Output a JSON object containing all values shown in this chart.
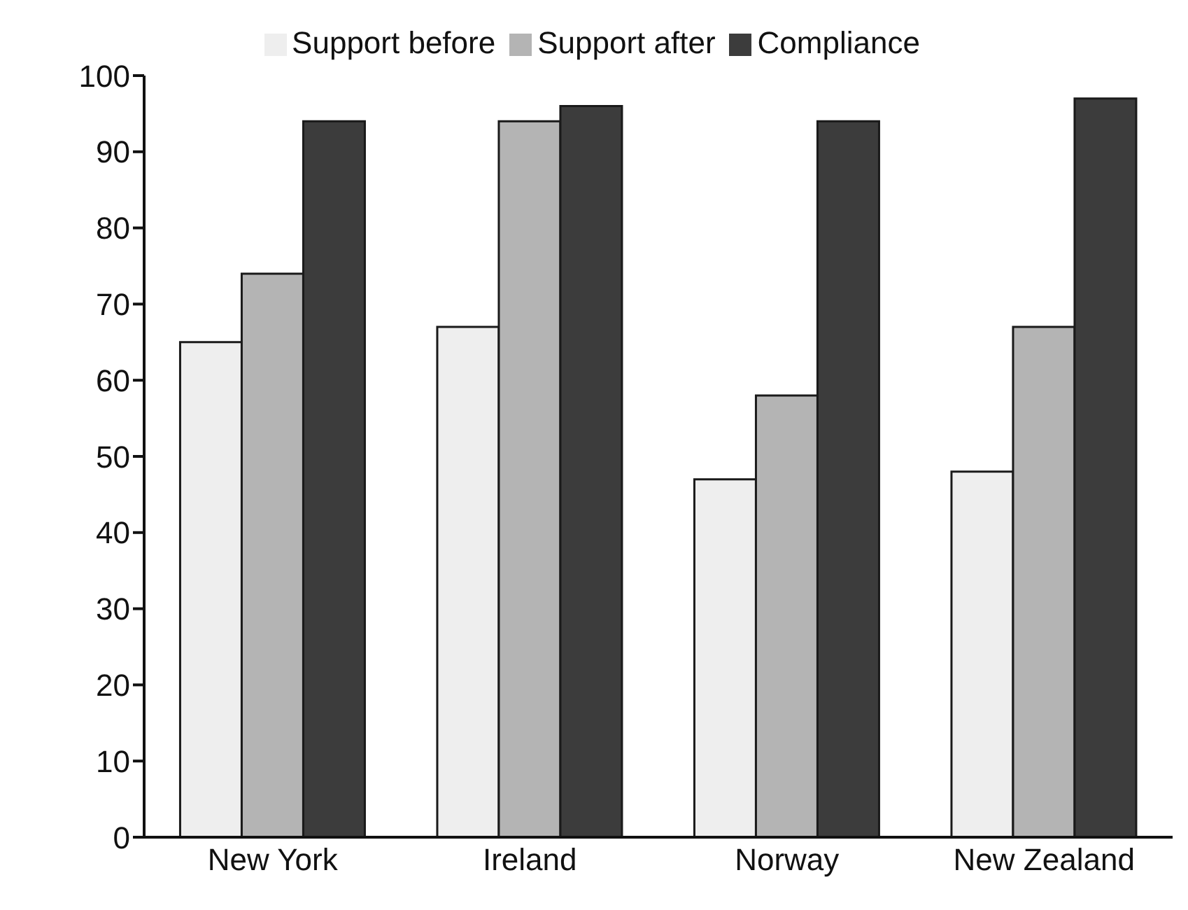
{
  "chart_data": {
    "type": "bar",
    "categories": [
      "New York",
      "Ireland",
      "Norway",
      "New Zealand"
    ],
    "series": [
      {
        "name": "Support before",
        "color": "#eeeeee",
        "values": [
          65,
          67,
          47,
          48
        ]
      },
      {
        "name": "Support after",
        "color": "#b4b4b4",
        "values": [
          74,
          94,
          58,
          67
        ]
      },
      {
        "name": "Compliance",
        "color": "#3c3c3c",
        "values": [
          94,
          96,
          94,
          97
        ]
      }
    ],
    "ylim": [
      0,
      100
    ],
    "yticks": [
      0,
      10,
      20,
      30,
      40,
      50,
      60,
      70,
      80,
      90,
      100
    ],
    "grid": false,
    "legend": "top"
  }
}
